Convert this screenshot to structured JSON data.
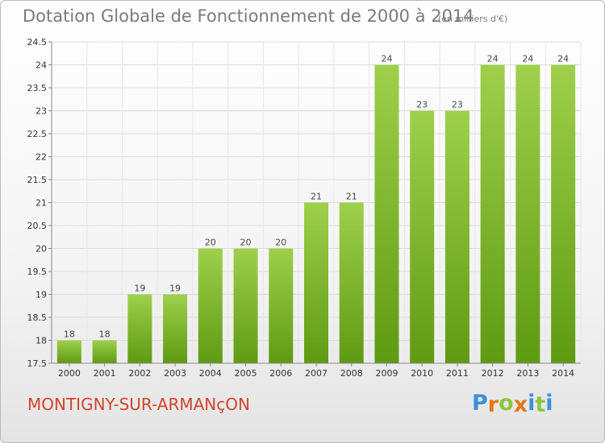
{
  "chart_data": {
    "type": "bar",
    "title": "Dotation Globale de Fonctionnement de 2000 à 2014",
    "subtitle": "(en milliers d'€)",
    "categories": [
      "2000",
      "2001",
      "2002",
      "2003",
      "2004",
      "2005",
      "2006",
      "2007",
      "2008",
      "2009",
      "2010",
      "2011",
      "2012",
      "2013",
      "2014"
    ],
    "values": [
      18,
      18,
      19,
      19,
      20,
      20,
      20,
      21,
      21,
      24,
      23,
      23,
      24,
      24,
      24
    ],
    "ylim": [
      17.5,
      24.5
    ],
    "yticks": [
      17.5,
      18,
      18.5,
      19,
      19.5,
      20,
      20.5,
      21,
      21.5,
      22,
      22.5,
      23,
      23.5,
      24,
      24.5
    ],
    "grid": true,
    "bar_color": "#7dbb2a"
  },
  "place_name": "MONTIGNY-SUR-ARMANçON",
  "logo": {
    "text": "Proxiti",
    "letter_colors": [
      "#3d8fd6",
      "#e8751a",
      "#8cc63f",
      "#e8751a",
      "#3d8fd6",
      "#8cc63f",
      "#3d8fd6"
    ]
  }
}
